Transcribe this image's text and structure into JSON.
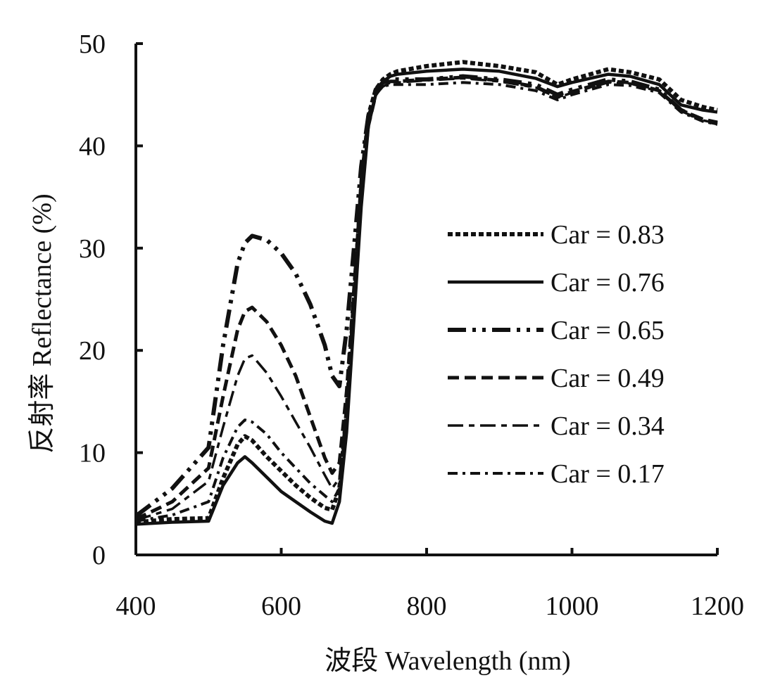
{
  "chart_data": {
    "type": "line",
    "title": "",
    "xlabel": "波段 Wavelength (nm)",
    "ylabel": "反射率 Reflectance (%)",
    "xlim": [
      400,
      1200
    ],
    "ylim": [
      0,
      50
    ],
    "xticks": [
      400,
      600,
      800,
      1000,
      1200
    ],
    "xtick_labels": [
      "400",
      "600",
      "800",
      "1000",
      "1200"
    ],
    "yticks": [
      0,
      10,
      20,
      30,
      40,
      50
    ],
    "ytick_labels": [
      "0",
      "10",
      "20",
      "30",
      "40",
      "50"
    ],
    "grid": false,
    "legend_position": "right",
    "series": [
      {
        "name": "Car = 0.83",
        "style": "short-dash",
        "x": [
          400,
          450,
          500,
          520,
          540,
          550,
          560,
          580,
          600,
          620,
          640,
          660,
          670,
          680,
          690,
          700,
          710,
          720,
          730,
          740,
          750,
          760,
          800,
          850,
          900,
          950,
          980,
          1000,
          1050,
          1080,
          1120,
          1150,
          1180,
          1200
        ],
        "y": [
          3.2,
          3.5,
          3.6,
          7.5,
          10.8,
          11.6,
          11.2,
          9.6,
          8.2,
          6.8,
          5.6,
          4.6,
          4.4,
          6.5,
          14,
          25,
          36,
          43,
          45.5,
          46.5,
          47,
          47.3,
          47.8,
          48.2,
          47.8,
          47.2,
          46,
          46.5,
          47.5,
          47.2,
          46.5,
          44.5,
          43.8,
          43.5
        ]
      },
      {
        "name": "Car = 0.76",
        "style": "solid",
        "x": [
          400,
          450,
          500,
          520,
          540,
          550,
          560,
          580,
          600,
          620,
          640,
          660,
          670,
          680,
          690,
          700,
          710,
          720,
          730,
          740,
          750,
          760,
          800,
          850,
          900,
          950,
          980,
          1000,
          1050,
          1080,
          1120,
          1150,
          1180,
          1200
        ],
        "y": [
          3.0,
          3.2,
          3.3,
          6.8,
          9.0,
          9.6,
          9.0,
          7.6,
          6.2,
          5.2,
          4.2,
          3.3,
          3.1,
          5.2,
          12,
          23,
          34,
          42,
          45,
          46.3,
          46.8,
          47,
          47.3,
          47.5,
          47.3,
          46.6,
          45.8,
          46.2,
          47,
          46.8,
          46,
          44,
          43.5,
          43.3
        ]
      },
      {
        "name": "Car = 0.65",
        "style": "dash-dot-dot",
        "x": [
          400,
          450,
          500,
          520,
          540,
          550,
          560,
          580,
          600,
          620,
          640,
          660,
          670,
          680,
          690,
          700,
          710,
          720,
          730,
          740,
          750,
          760,
          800,
          850,
          900,
          950,
          980,
          1000,
          1050,
          1080,
          1120,
          1150,
          1180,
          1200
        ],
        "y": [
          3.8,
          6.5,
          10.5,
          20.5,
          28.5,
          30.5,
          31.2,
          30.8,
          29.5,
          27.5,
          24.5,
          20.5,
          17.5,
          16.5,
          22,
          30,
          38,
          43,
          45.5,
          46.2,
          46.5,
          46.5,
          46.5,
          46.8,
          46.5,
          46,
          45,
          45.5,
          46.5,
          46.3,
          45.5,
          43.5,
          42.5,
          42.2
        ]
      },
      {
        "name": "Car = 0.49",
        "style": "dash",
        "x": [
          400,
          450,
          500,
          520,
          540,
          550,
          560,
          580,
          600,
          620,
          640,
          660,
          670,
          680,
          690,
          700,
          710,
          720,
          730,
          740,
          750,
          760,
          800,
          850,
          900,
          950,
          980,
          1000,
          1050,
          1080,
          1120,
          1150,
          1180,
          1200
        ],
        "y": [
          3.5,
          5.2,
          8.5,
          15.5,
          22,
          23.8,
          24.2,
          22.8,
          20.5,
          17.5,
          13.5,
          9.5,
          8.0,
          9.0,
          16,
          26,
          36,
          42,
          45,
          46,
          46.3,
          46.3,
          46.5,
          46.7,
          46.4,
          45.8,
          44.8,
          45.3,
          46.3,
          46.2,
          45.4,
          43.5,
          42.6,
          42.3
        ]
      },
      {
        "name": "Car = 0.34",
        "style": "long-dash-short",
        "x": [
          400,
          450,
          500,
          520,
          540,
          550,
          560,
          580,
          600,
          620,
          640,
          660,
          670,
          680,
          690,
          700,
          710,
          720,
          730,
          740,
          750,
          760,
          800,
          850,
          900,
          950,
          980,
          1000,
          1050,
          1080,
          1120,
          1150,
          1180,
          1200
        ],
        "y": [
          3.4,
          4.5,
          7.2,
          12.5,
          17.5,
          19.2,
          19.5,
          17.8,
          15.5,
          13,
          10.5,
          7.8,
          6.5,
          7.5,
          14.5,
          25,
          35.5,
          42,
          45,
          45.8,
          46.2,
          46.2,
          46.4,
          46.6,
          46.3,
          45.7,
          44.7,
          45.2,
          46.2,
          46.1,
          45.3,
          43.4,
          42.5,
          42.2
        ]
      },
      {
        "name": "Car = 0.17",
        "style": "dash-dot",
        "x": [
          400,
          450,
          500,
          520,
          540,
          550,
          560,
          580,
          600,
          620,
          640,
          660,
          670,
          680,
          690,
          700,
          710,
          720,
          730,
          740,
          750,
          760,
          800,
          850,
          900,
          950,
          980,
          1000,
          1050,
          1080,
          1120,
          1150,
          1180,
          1200
        ],
        "y": [
          3.3,
          3.9,
          5.2,
          9.5,
          12.5,
          13.2,
          13.0,
          11.8,
          10.0,
          8.5,
          7.0,
          5.8,
          5.2,
          6.5,
          14,
          26,
          37,
          43,
          45.2,
          45.8,
          46,
          46,
          46,
          46.2,
          46,
          45.4,
          44.5,
          45,
          46,
          45.9,
          45.2,
          43.3,
          42.4,
          42.1
        ]
      }
    ]
  }
}
